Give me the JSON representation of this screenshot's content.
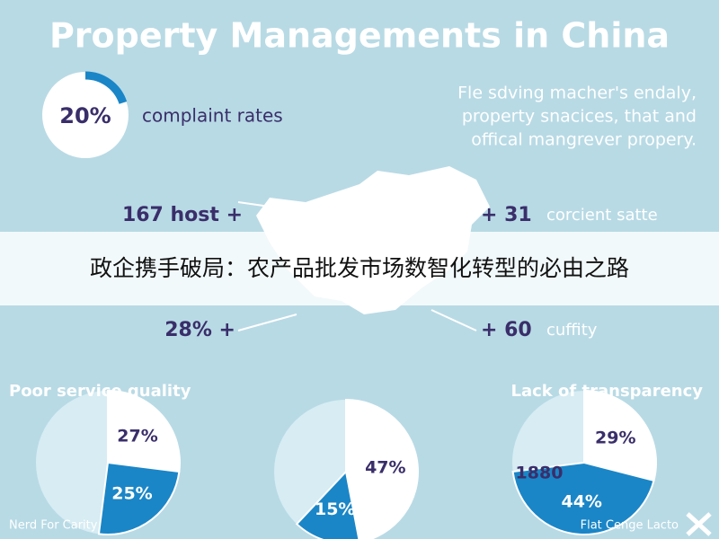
{
  "title": "Property Managements in China",
  "ring": {
    "value": 20,
    "value_label": "20%",
    "label": "complaint rates"
  },
  "description": [
    "Fle sdving macher's endaly,",
    "property snacices, that and",
    "offical mangrever propery."
  ],
  "stats_left": [
    "167 host +",
    "28% +"
  ],
  "stats_right": [
    {
      "number": "+ 31",
      "label": "corcient satte"
    },
    {
      "number": "+ 60",
      "label": "cuffity"
    }
  ],
  "banner": "政企携手破局：农产品批发市场数智化转型的必由之路",
  "pies": [
    {
      "title": "Poor service quality",
      "values": [
        27,
        25
      ],
      "value_labels": [
        "27%",
        "25%"
      ]
    },
    {
      "values": [
        47,
        15
      ],
      "value_labels": [
        "47%",
        "15%"
      ]
    },
    {
      "title": "Lack of transparency",
      "caption": "1880",
      "values": [
        29,
        44
      ],
      "value_labels": [
        "29%",
        "44%"
      ]
    }
  ],
  "footer": {
    "left": "Nerd For Carity",
    "right": "Flat Cenge Lacto"
  }
}
